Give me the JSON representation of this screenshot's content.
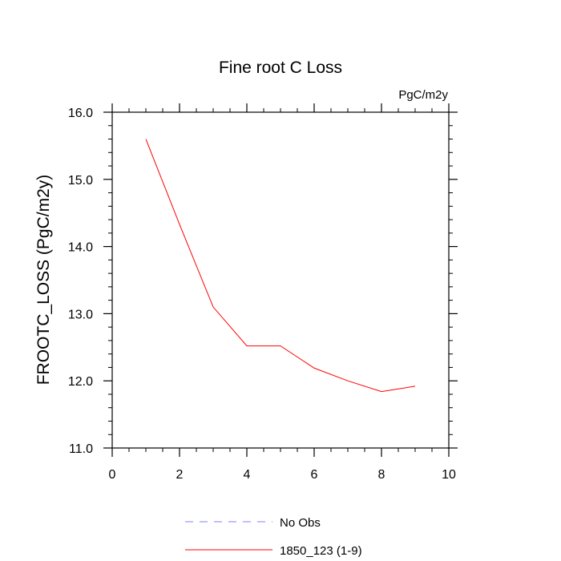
{
  "chart_data": {
    "type": "line",
    "title": "Fine root C Loss",
    "units_label": "PgC/m2y",
    "ylabel": "FROOTC_LOSS  (PgC/m2y)",
    "xlabel": "",
    "xlim": [
      0,
      10
    ],
    "ylim": [
      11.0,
      16.0
    ],
    "x_ticks": [
      0,
      2,
      4,
      6,
      8,
      10
    ],
    "x_tick_labels": [
      "0",
      "2",
      "4",
      "6",
      "8",
      "10"
    ],
    "y_ticks": [
      11.0,
      12.0,
      13.0,
      14.0,
      15.0,
      16.0
    ],
    "y_tick_labels": [
      "11.0",
      "12.0",
      "13.0",
      "14.0",
      "15.0",
      "16.0"
    ],
    "grid": false,
    "legend_position": "bottom",
    "series": [
      {
        "name": "1850_123 (1-9)",
        "color": "#ff0000",
        "style": "solid",
        "x": [
          1,
          2,
          3,
          4,
          5,
          6,
          7,
          8,
          9
        ],
        "values": [
          15.6,
          14.33,
          13.1,
          12.52,
          12.52,
          12.19,
          12.0,
          11.84,
          11.92
        ]
      }
    ],
    "legend": [
      {
        "label": "No Obs",
        "color": "#8080ff",
        "style": "dashed"
      },
      {
        "label": "1850_123 (1-9)",
        "color": "#ff0000",
        "style": "solid"
      }
    ]
  }
}
